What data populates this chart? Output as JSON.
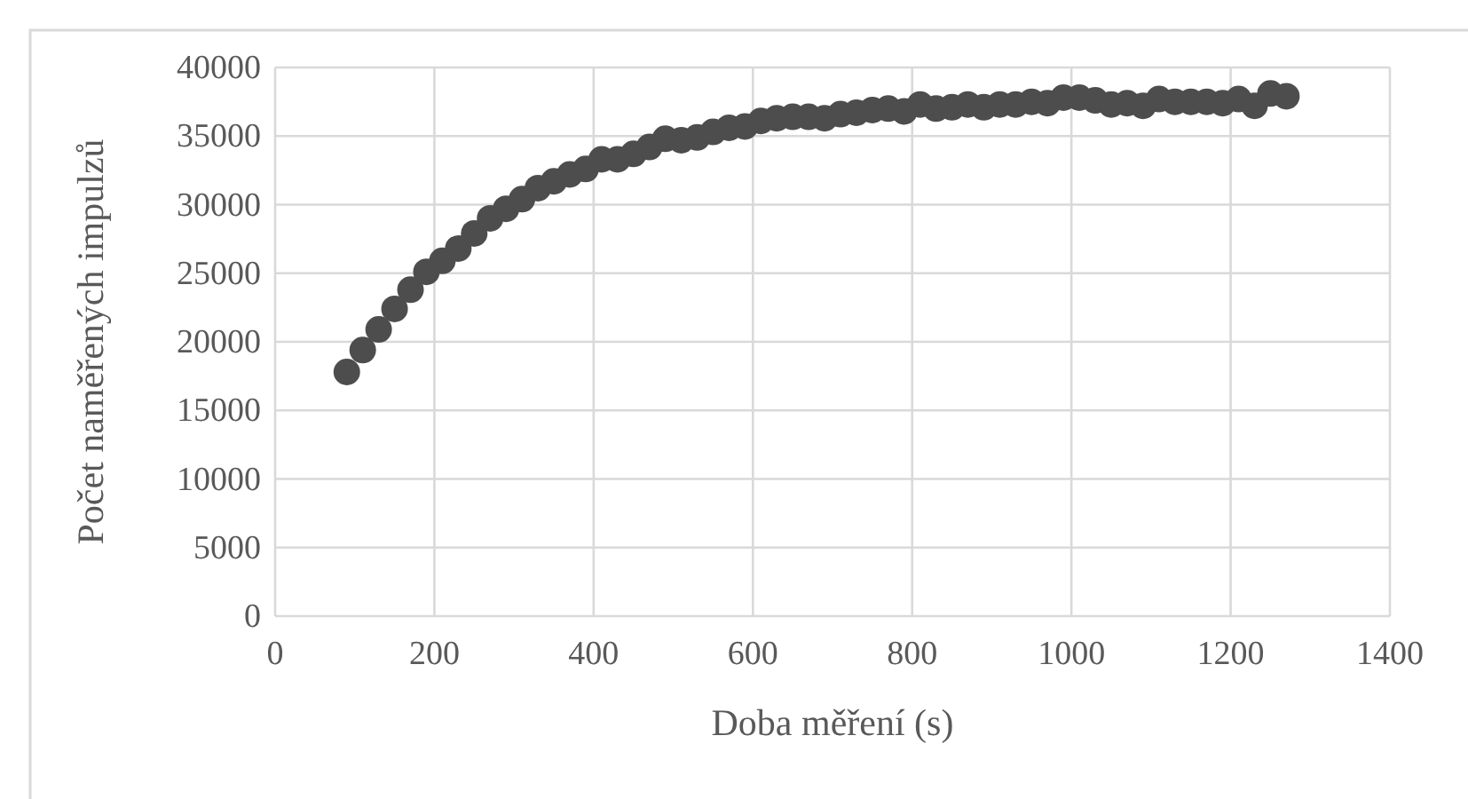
{
  "chart_data": {
    "type": "scatter",
    "xlabel": "Doba měření (s)",
    "ylabel": "Počet naměřených impulzů",
    "x": [
      90,
      110,
      130,
      150,
      170,
      190,
      210,
      230,
      250,
      270,
      290,
      310,
      330,
      350,
      370,
      390,
      410,
      430,
      450,
      470,
      490,
      510,
      530,
      550,
      570,
      590,
      610,
      630,
      650,
      670,
      690,
      710,
      730,
      750,
      770,
      790,
      810,
      830,
      850,
      870,
      890,
      910,
      930,
      950,
      970,
      990,
      1010,
      1030,
      1050,
      1070,
      1090,
      1110,
      1130,
      1150,
      1170,
      1190,
      1210,
      1230,
      1250,
      1270
    ],
    "series": [
      {
        "color": "#4d4d4d",
        "values": [
          17800,
          19400,
          20900,
          22400,
          23800,
          25100,
          25900,
          26800,
          27900,
          29000,
          29700,
          30400,
          31200,
          31700,
          32200,
          32600,
          33300,
          33300,
          33700,
          34200,
          34800,
          34700,
          34900,
          35300,
          35600,
          35700,
          36100,
          36300,
          36400,
          36400,
          36300,
          36600,
          36700,
          36900,
          37000,
          36800,
          37300,
          37000,
          37100,
          37300,
          37100,
          37300,
          37300,
          37500,
          37400,
          37800,
          37800,
          37600,
          37300,
          37400,
          37200,
          37700,
          37500,
          37500,
          37500,
          37400,
          37700,
          37200,
          38100,
          37900
        ]
      }
    ],
    "xlim": [
      0,
      1400
    ],
    "xticks": [
      0,
      200,
      400,
      600,
      800,
      1000,
      1200,
      1400
    ],
    "ylim": [
      0,
      40000
    ],
    "yticks": [
      0,
      5000,
      10000,
      15000,
      20000,
      25000,
      30000,
      35000,
      40000
    ],
    "grid": true,
    "marker": "circle"
  }
}
